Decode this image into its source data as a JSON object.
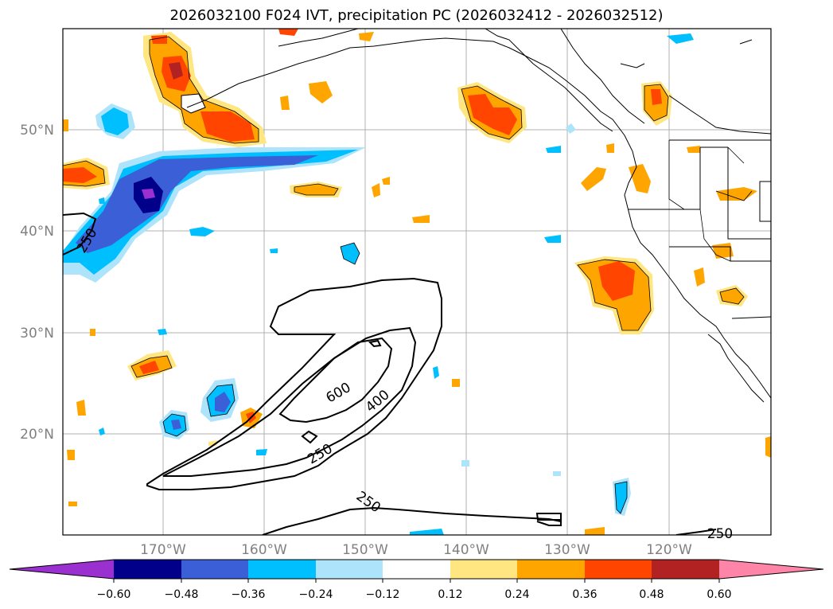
{
  "title": "2026032100 F024 IVT, precipitation PC (2026032412 - 2026032512)",
  "lat_labels": [
    "50°N",
    "40°N",
    "30°N",
    "20°N"
  ],
  "lon_labels": [
    "170°W",
    "160°W",
    "150°W",
    "140°W",
    "130°W",
    "120°W"
  ],
  "contour_labels": [
    "250",
    "600",
    "400",
    "250",
    "250",
    "250"
  ],
  "colorbar": {
    "ticks": [
      "−0.60",
      "−0.48",
      "−0.36",
      "−0.24",
      "−0.12",
      "0.12",
      "0.24",
      "0.36",
      "0.48",
      "0.60"
    ],
    "colors": [
      "#9b30d0",
      "#00008b",
      "#3a5fd6",
      "#00bfff",
      "#aee4fb",
      "#ffffff",
      "#ffe680",
      "#ffa500",
      "#ff4500",
      "#b22222",
      "#ff85a8"
    ]
  },
  "ivt_contour_levels": [
    250,
    400,
    600
  ]
}
